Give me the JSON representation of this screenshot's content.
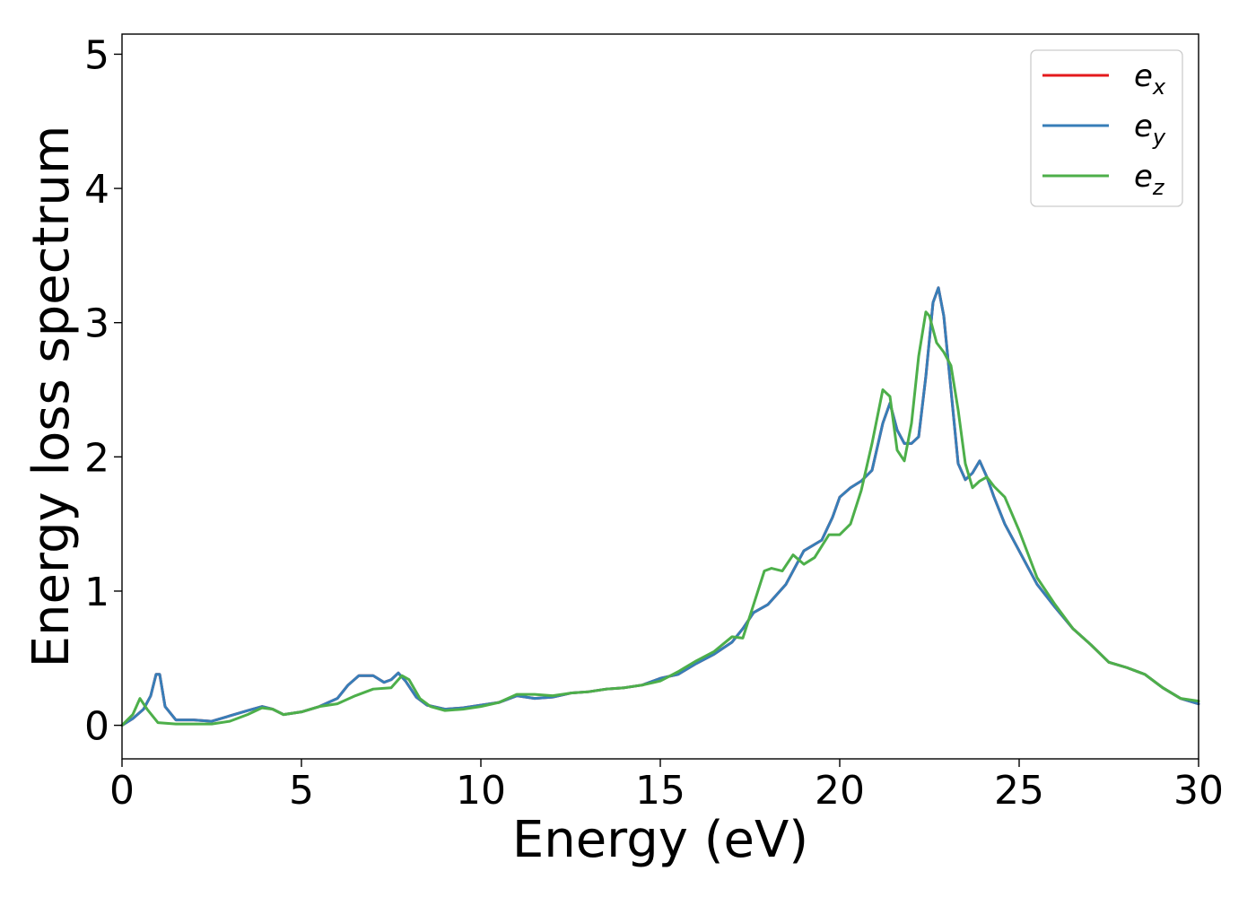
{
  "chart_data": {
    "type": "line",
    "xlabel": "Energy (eV)",
    "ylabel": "Energy loss spectrum",
    "xlim": [
      0,
      30
    ],
    "ylim": [
      -0.25,
      5.15
    ],
    "xticks": [
      "0",
      "5",
      "10",
      "15",
      "20",
      "25",
      "30"
    ],
    "yticks": [
      "0",
      "1",
      "2",
      "3",
      "4",
      "5"
    ],
    "grid": false,
    "legend_position": "top-right",
    "series": [
      {
        "name": "e",
        "subscript": "x",
        "color": "#e41a1c",
        "x": [
          0,
          0.3,
          0.6,
          0.8,
          0.95,
          1.05,
          1.2,
          1.5,
          2.0,
          2.5,
          3.0,
          3.5,
          3.9,
          4.2,
          4.5,
          5.0,
          5.5,
          6.0,
          6.3,
          6.6,
          7.0,
          7.3,
          7.5,
          7.7,
          7.9,
          8.2,
          8.5,
          9.0,
          9.5,
          10.0,
          10.5,
          11.0,
          11.5,
          12.0,
          12.5,
          13.0,
          13.5,
          14.0,
          14.5,
          15.0,
          15.5,
          16.0,
          16.5,
          17.0,
          17.3,
          17.6,
          18.0,
          18.5,
          19.0,
          19.5,
          19.8,
          20.0,
          20.3,
          20.6,
          20.9,
          21.2,
          21.4,
          21.6,
          21.8,
          22.0,
          22.2,
          22.4,
          22.6,
          22.75,
          22.9,
          23.1,
          23.3,
          23.5,
          23.7,
          23.9,
          24.1,
          24.3,
          24.6,
          25.0,
          25.5,
          26.0,
          26.5,
          27.0,
          27.5,
          28.0,
          28.5,
          29.0,
          29.5,
          30.0
        ],
        "y": [
          0.0,
          0.05,
          0.12,
          0.22,
          0.38,
          0.38,
          0.14,
          0.04,
          0.04,
          0.03,
          0.07,
          0.11,
          0.14,
          0.12,
          0.08,
          0.1,
          0.14,
          0.2,
          0.3,
          0.37,
          0.37,
          0.32,
          0.34,
          0.39,
          0.33,
          0.21,
          0.15,
          0.12,
          0.13,
          0.15,
          0.17,
          0.22,
          0.2,
          0.21,
          0.24,
          0.25,
          0.27,
          0.28,
          0.3,
          0.35,
          0.38,
          0.46,
          0.53,
          0.62,
          0.72,
          0.84,
          0.9,
          1.05,
          1.3,
          1.38,
          1.55,
          1.7,
          1.77,
          1.82,
          1.9,
          2.25,
          2.4,
          2.2,
          2.1,
          2.1,
          2.15,
          2.6,
          3.15,
          3.26,
          3.05,
          2.5,
          1.95,
          1.83,
          1.88,
          1.97,
          1.85,
          1.7,
          1.5,
          1.3,
          1.05,
          0.88,
          0.72,
          0.6,
          0.47,
          0.43,
          0.38,
          0.28,
          0.2,
          0.16
        ]
      },
      {
        "name": "e",
        "subscript": "y",
        "color": "#377eb8",
        "x": [
          0,
          0.3,
          0.6,
          0.8,
          0.95,
          1.05,
          1.2,
          1.5,
          2.0,
          2.5,
          3.0,
          3.5,
          3.9,
          4.2,
          4.5,
          5.0,
          5.5,
          6.0,
          6.3,
          6.6,
          7.0,
          7.3,
          7.5,
          7.7,
          7.9,
          8.2,
          8.5,
          9.0,
          9.5,
          10.0,
          10.5,
          11.0,
          11.5,
          12.0,
          12.5,
          13.0,
          13.5,
          14.0,
          14.5,
          15.0,
          15.5,
          16.0,
          16.5,
          17.0,
          17.3,
          17.6,
          18.0,
          18.5,
          19.0,
          19.5,
          19.8,
          20.0,
          20.3,
          20.6,
          20.9,
          21.2,
          21.4,
          21.6,
          21.8,
          22.0,
          22.2,
          22.4,
          22.6,
          22.75,
          22.9,
          23.1,
          23.3,
          23.5,
          23.7,
          23.9,
          24.1,
          24.3,
          24.6,
          25.0,
          25.5,
          26.0,
          26.5,
          27.0,
          27.5,
          28.0,
          28.5,
          29.0,
          29.5,
          30.0
        ],
        "y": [
          0.0,
          0.05,
          0.12,
          0.22,
          0.38,
          0.38,
          0.14,
          0.04,
          0.04,
          0.03,
          0.07,
          0.11,
          0.14,
          0.12,
          0.08,
          0.1,
          0.14,
          0.2,
          0.3,
          0.37,
          0.37,
          0.32,
          0.34,
          0.39,
          0.33,
          0.21,
          0.15,
          0.12,
          0.13,
          0.15,
          0.17,
          0.22,
          0.2,
          0.21,
          0.24,
          0.25,
          0.27,
          0.28,
          0.3,
          0.35,
          0.38,
          0.46,
          0.53,
          0.62,
          0.72,
          0.84,
          0.9,
          1.05,
          1.3,
          1.38,
          1.55,
          1.7,
          1.77,
          1.82,
          1.9,
          2.25,
          2.4,
          2.2,
          2.1,
          2.1,
          2.15,
          2.6,
          3.15,
          3.26,
          3.05,
          2.5,
          1.95,
          1.83,
          1.88,
          1.97,
          1.85,
          1.7,
          1.5,
          1.3,
          1.05,
          0.88,
          0.72,
          0.6,
          0.47,
          0.43,
          0.38,
          0.28,
          0.2,
          0.16
        ]
      },
      {
        "name": "e",
        "subscript": "z",
        "color": "#4daf4a",
        "x": [
          0,
          0.3,
          0.5,
          0.7,
          1.0,
          1.5,
          2.0,
          2.5,
          3.0,
          3.5,
          3.9,
          4.2,
          4.5,
          5.0,
          5.5,
          6.0,
          6.5,
          7.0,
          7.5,
          7.8,
          8.0,
          8.3,
          8.6,
          9.0,
          9.5,
          10.0,
          10.5,
          11.0,
          11.5,
          12.0,
          12.5,
          13.0,
          13.5,
          14.0,
          14.5,
          15.0,
          15.5,
          16.0,
          16.5,
          17.0,
          17.3,
          17.6,
          17.9,
          18.1,
          18.4,
          18.7,
          19.0,
          19.3,
          19.7,
          20.0,
          20.3,
          20.6,
          20.9,
          21.2,
          21.4,
          21.6,
          21.8,
          22.0,
          22.2,
          22.4,
          22.5,
          22.7,
          22.9,
          23.1,
          23.3,
          23.5,
          23.7,
          23.9,
          24.1,
          24.3,
          24.6,
          25.0,
          25.5,
          26.0,
          26.5,
          27.0,
          27.5,
          28.0,
          28.5,
          29.0,
          29.5,
          30.0
        ],
        "y": [
          0.0,
          0.08,
          0.2,
          0.12,
          0.02,
          0.01,
          0.01,
          0.01,
          0.03,
          0.08,
          0.13,
          0.12,
          0.08,
          0.1,
          0.14,
          0.16,
          0.22,
          0.27,
          0.28,
          0.37,
          0.34,
          0.2,
          0.14,
          0.11,
          0.12,
          0.14,
          0.17,
          0.23,
          0.23,
          0.22,
          0.24,
          0.25,
          0.27,
          0.28,
          0.3,
          0.33,
          0.4,
          0.48,
          0.55,
          0.66,
          0.65,
          0.9,
          1.15,
          1.17,
          1.15,
          1.27,
          1.2,
          1.25,
          1.42,
          1.42,
          1.5,
          1.75,
          2.1,
          2.5,
          2.45,
          2.05,
          1.97,
          2.25,
          2.75,
          3.08,
          3.05,
          2.85,
          2.78,
          2.68,
          2.35,
          1.95,
          1.77,
          1.82,
          1.85,
          1.78,
          1.7,
          1.45,
          1.1,
          0.9,
          0.72,
          0.6,
          0.47,
          0.43,
          0.38,
          0.28,
          0.2,
          0.18
        ]
      }
    ]
  }
}
